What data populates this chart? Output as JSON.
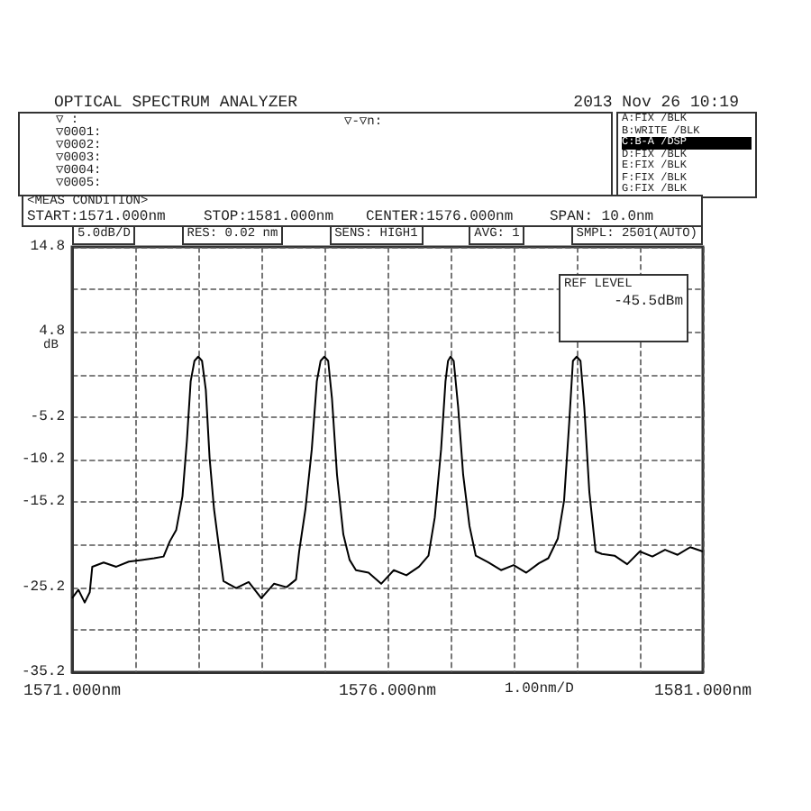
{
  "chart_data": {
    "type": "line",
    "title": "OPTICAL SPECTRUM ANALYZER",
    "subtitle": "2013 Nov 26 10:19",
    "ylabel": "dB",
    "annotations": [
      "▽ :",
      "▽0001:",
      "▽0002:",
      "▽0003:",
      "▽0004:",
      "▽0005:",
      "▽-▽n:",
      "A:FIX /BLK",
      "B:WRITE /BLK",
      "C:B-A /DSP",
      "D:FIX /BLK",
      "E:FIX /BLK",
      "F:FIX /BLK",
      "G:FIX /BLK",
      "<MEAS CONDITION>",
      "START:1571.000nm",
      "STOP:1581.000nm",
      "CENTER:1576.000nm",
      "SPAN: 10.0nm",
      "5.0dB/D",
      "RES: 0.02 nm",
      "SENS: HIGH1",
      "AVG: 1",
      "SMPL: 2501(AUTO)",
      "REF LEVEL -45.5dBm",
      "1.00nm/D"
    ],
    "x": [
      1571.0,
      1571.1,
      1571.2,
      1571.28,
      1571.32,
      1571.5,
      1571.7,
      1571.9,
      1572.1,
      1572.3,
      1572.45,
      1572.55,
      1572.65,
      1572.75,
      1572.82,
      1572.88,
      1572.94,
      1573.0,
      1573.06,
      1573.12,
      1573.18,
      1573.25,
      1573.32,
      1573.4,
      1573.6,
      1573.8,
      1574.0,
      1574.2,
      1574.4,
      1574.55,
      1574.6,
      1574.7,
      1574.8,
      1574.88,
      1574.94,
      1575.0,
      1575.06,
      1575.12,
      1575.2,
      1575.3,
      1575.4,
      1575.5,
      1575.7,
      1575.9,
      1576.1,
      1576.3,
      1576.5,
      1576.65,
      1576.75,
      1576.85,
      1576.92,
      1576.96,
      1577.0,
      1577.05,
      1577.12,
      1577.2,
      1577.3,
      1577.4,
      1577.6,
      1577.8,
      1578.0,
      1578.2,
      1578.4,
      1578.55,
      1578.7,
      1578.8,
      1578.88,
      1578.94,
      1579.0,
      1579.06,
      1579.12,
      1579.2,
      1579.3,
      1579.4,
      1579.6,
      1579.8,
      1580.0,
      1580.2,
      1580.4,
      1580.6,
      1580.8,
      1581.0
    ],
    "series": [
      {
        "color": "#000000",
        "values": [
          -26.5,
          -25.5,
          -27,
          -25.8,
          -22.8,
          -22.3,
          -22.8,
          -22.2,
          -22.0,
          -21.8,
          -21.6,
          -19.8,
          -18.5,
          -14.5,
          -8,
          -1,
          1.4,
          1.9,
          1.4,
          -2,
          -10,
          -16,
          -20,
          -24.5,
          -25.3,
          -24.6,
          -26.5,
          -24.8,
          -25.2,
          -24.3,
          -21,
          -16,
          -9,
          -1,
          1.4,
          1.9,
          1.4,
          -3,
          -12,
          -19,
          -22,
          -23.2,
          -23.5,
          -24.8,
          -23.2,
          -23.8,
          -22.8,
          -21.5,
          -17,
          -9,
          -1,
          1.4,
          1.9,
          1.4,
          -4,
          -12,
          -18,
          -21.5,
          -22.3,
          -23.2,
          -22.6,
          -23.5,
          -22.4,
          -21.8,
          -19.5,
          -15,
          -6,
          1.4,
          1.9,
          1.4,
          -4,
          -14,
          -21,
          -21.3,
          -21.5,
          -22.5,
          -21.0,
          -21.6,
          -20.8,
          -21.4,
          -20.5,
          -21.0
        ]
      }
    ],
    "xlim": [
      1571,
      1581
    ],
    "xticks": [
      {
        "value": 1571,
        "label": "1571.000nm"
      },
      {
        "value": 1572,
        "label": null
      },
      {
        "value": 1573,
        "label": null
      },
      {
        "value": 1574,
        "label": null
      },
      {
        "value": 1575,
        "label": null
      },
      {
        "value": 1576,
        "label": "1576.000nm"
      },
      {
        "value": 1577,
        "label": null
      },
      {
        "value": 1578,
        "label": null
      },
      {
        "value": 1579,
        "label": null
      },
      {
        "value": 1580,
        "label": null
      },
      {
        "value": 1581,
        "label": "1581.000nm"
      }
    ],
    "ylim": [
      -35.2,
      14.8
    ],
    "yticks": [
      -35.2,
      {
        "value": -30.2,
        "label": null
      },
      -25.2,
      {
        "value": -20.2,
        "label": null
      },
      -15.2,
      -10.2,
      -5.2,
      {
        "value": -0.2,
        "label": null
      },
      4.8,
      {
        "value": 9.8,
        "label": null
      },
      14.8
    ],
    "grid": true,
    "marker": "none",
    "line_style": "solid"
  }
}
